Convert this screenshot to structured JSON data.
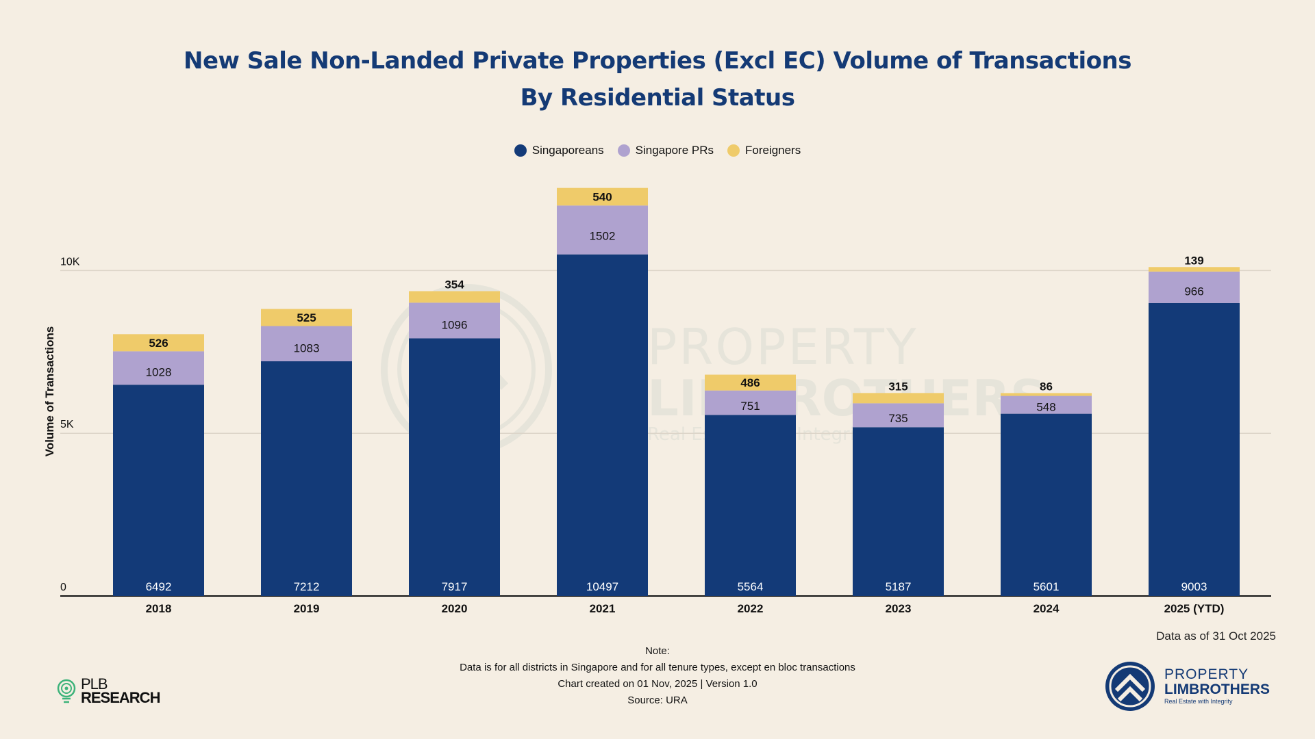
{
  "title_lines": [
    "New Sale Non-Landed Private Properties (Excl EC) Volume of Transactions",
    "By Residential Status"
  ],
  "colors": {
    "singaporeans": "#133a78",
    "prs": "#afa2cf",
    "foreigners": "#efcb6a",
    "title": "#143a75",
    "background": "#f5eee3",
    "grid": "#dcd4c8"
  },
  "legend": [
    {
      "label": "Singaporeans",
      "color": "#133a78"
    },
    {
      "label": "Singapore PRs",
      "color": "#afa2cf"
    },
    {
      "label": "Foreigners",
      "color": "#efcb6a"
    }
  ],
  "chart_data": {
    "type": "bar",
    "stacked": true,
    "title": "New Sale Non-Landed Private Properties (Excl EC) Volume of Transactions By Residential Status",
    "xlabel": "",
    "ylabel": "Volume of Transactions",
    "categories": [
      "2018",
      "2019",
      "2020",
      "2021",
      "2022",
      "2023",
      "2024",
      "2025 (YTD)"
    ],
    "series": [
      {
        "name": "Singaporeans",
        "values": [
          6492,
          7212,
          7917,
          10497,
          5564,
          5187,
          5601,
          9003
        ]
      },
      {
        "name": "Singapore PRs",
        "values": [
          1028,
          1083,
          1096,
          1502,
          751,
          735,
          548,
          966
        ]
      },
      {
        "name": "Foreigners",
        "values": [
          526,
          525,
          354,
          540,
          486,
          315,
          86,
          139
        ]
      }
    ],
    "ylim": [
      0,
      12700
    ],
    "yticks": [
      0,
      5000,
      10000
    ],
    "ytick_labels": [
      "0",
      "5K",
      "10K"
    ],
    "grid": true,
    "legend_position": "top-center",
    "data_labels": true
  },
  "watermark": {
    "line1": "PROPERTY",
    "line2": "LIMBROTHERS",
    "line3": "Real Estate with Integrity"
  },
  "data_as_of": "Data as of 31 Oct 2025",
  "footer": {
    "note_label": "Note:",
    "note_text": "Data is for all districts in Singapore and for all tenure types, except en bloc transactions",
    "created": "Chart created on 01 Nov, 2025 | Version 1.0",
    "source": "Source: URA"
  },
  "logos": {
    "plb_line1": "PLB",
    "plb_line2": "RESEARCH",
    "pl_line1": "PROPERTY",
    "pl_line2": "LIMBROTHERS",
    "pl_tagline": "Real Estate with Integrity"
  }
}
